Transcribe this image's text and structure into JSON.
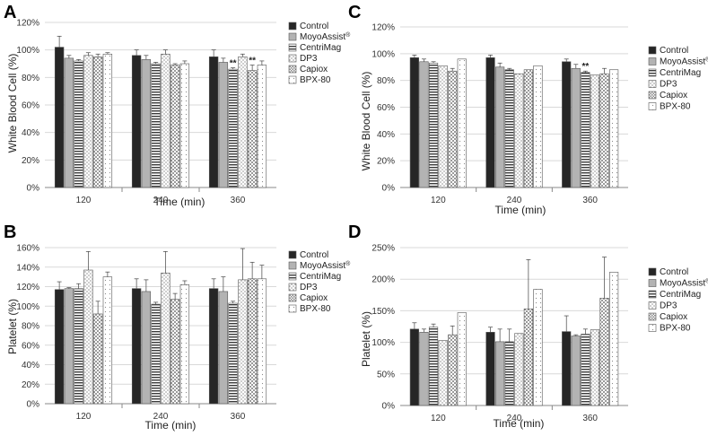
{
  "figure": {
    "legend_items": [
      {
        "label": "Control",
        "superscript": ""
      },
      {
        "label": "MoyoAssist",
        "superscript": "®"
      },
      {
        "label": "CentriMag",
        "superscript": ""
      },
      {
        "label": "DP3",
        "superscript": ""
      },
      {
        "label": "Capiox",
        "superscript": ""
      },
      {
        "label": "BPX-80",
        "superscript": ""
      }
    ]
  },
  "chart_data": [
    {
      "id": "A",
      "panel_label": "A",
      "type": "bar",
      "xlabel": "Time (min)",
      "ylabel": "White Blood Cell (%)",
      "categories": [
        "120",
        "240",
        "360"
      ],
      "ylim": [
        0,
        120
      ],
      "yticks": [
        0,
        20,
        40,
        60,
        80,
        100,
        120
      ],
      "tick_suffix": "%",
      "series": [
        {
          "name": "Control",
          "values": [
            102,
            96,
            95
          ],
          "errors": [
            8,
            4,
            5
          ]
        },
        {
          "name": "MoyoAssist",
          "values": [
            94,
            93,
            91
          ],
          "errors": [
            2,
            3,
            3
          ]
        },
        {
          "name": "CentriMag",
          "values": [
            92,
            90,
            86
          ],
          "errors": [
            1,
            1,
            1
          ]
        },
        {
          "name": "DP3",
          "values": [
            96,
            97,
            95
          ],
          "errors": [
            2,
            3,
            2
          ]
        },
        {
          "name": "Capiox",
          "values": [
            95,
            89,
            85
          ],
          "errors": [
            2,
            1,
            4
          ]
        },
        {
          "name": "BPX-80",
          "values": [
            97,
            90,
            89
          ],
          "errors": [
            1,
            2,
            3
          ]
        }
      ],
      "annotations": [
        {
          "category": "360",
          "series": "CentriMag",
          "text": "**"
        },
        {
          "category": "360",
          "series": "Capiox",
          "text": "**"
        }
      ],
      "legend": "right"
    },
    {
      "id": "B",
      "panel_label": "B",
      "type": "bar",
      "xlabel": "Time (min)",
      "ylabel": "Platelet (%)",
      "categories": [
        "120",
        "240",
        "360"
      ],
      "ylim": [
        0,
        160
      ],
      "yticks": [
        0,
        20,
        40,
        60,
        80,
        100,
        120,
        140,
        160
      ],
      "tick_suffix": "%",
      "series": [
        {
          "name": "Control",
          "values": [
            117,
            118,
            118
          ],
          "errors": [
            8,
            10,
            10
          ]
        },
        {
          "name": "MoyoAssist",
          "values": [
            118,
            115,
            115
          ],
          "errors": [
            1,
            12,
            15
          ]
        },
        {
          "name": "CentriMag",
          "values": [
            118,
            102,
            103
          ],
          "errors": [
            5,
            2,
            2
          ]
        },
        {
          "name": "DP3",
          "values": [
            137,
            134,
            127
          ],
          "errors": [
            19,
            22,
            32
          ]
        },
        {
          "name": "Capiox",
          "values": [
            92,
            107,
            128
          ],
          "errors": [
            13,
            6,
            17
          ]
        },
        {
          "name": "BPX-80",
          "values": [
            130,
            122,
            128
          ],
          "errors": [
            5,
            4,
            14
          ]
        }
      ],
      "annotations": [],
      "legend": "right"
    },
    {
      "id": "C",
      "panel_label": "C",
      "type": "bar",
      "xlabel": "Time (min)",
      "ylabel": "White Blood Cell (%)",
      "categories": [
        "120",
        "240",
        "360"
      ],
      "ylim": [
        0,
        120
      ],
      "yticks": [
        0,
        20,
        40,
        60,
        80,
        100,
        120
      ],
      "tick_suffix": "%",
      "series": [
        {
          "name": "Control",
          "values": [
            97,
            97,
            94
          ],
          "errors": [
            2,
            2,
            2
          ]
        },
        {
          "name": "MoyoAssist",
          "values": [
            94,
            90,
            89
          ],
          "errors": [
            2,
            3,
            3
          ]
        },
        {
          "name": "CentriMag",
          "values": [
            93,
            88,
            86
          ],
          "errors": [
            1,
            1,
            1
          ]
        },
        {
          "name": "DP3",
          "values": [
            91,
            85,
            84
          ],
          "errors": [
            0,
            0,
            0
          ]
        },
        {
          "name": "Capiox",
          "values": [
            87,
            88,
            85
          ],
          "errors": [
            2,
            0,
            4
          ]
        },
        {
          "name": "BPX-80",
          "values": [
            96,
            91,
            88
          ],
          "errors": [
            0,
            0,
            0
          ]
        }
      ],
      "annotations": [
        {
          "category": "360",
          "series": "CentriMag",
          "text": "**"
        }
      ],
      "legend": "right"
    },
    {
      "id": "D",
      "panel_label": "D",
      "type": "bar",
      "xlabel": "Time (min)",
      "ylabel": "Platelet (%)",
      "categories": [
        "120",
        "240",
        "360"
      ],
      "ylim": [
        0,
        250
      ],
      "yticks": [
        0,
        50,
        100,
        150,
        200,
        250
      ],
      "tick_suffix": "%",
      "series": [
        {
          "name": "Control",
          "values": [
            121,
            116,
            117
          ],
          "errors": [
            10,
            8,
            25
          ]
        },
        {
          "name": "MoyoAssist",
          "values": [
            116,
            101,
            110
          ],
          "errors": [
            5,
            20,
            2
          ]
        },
        {
          "name": "CentriMag",
          "values": [
            124,
            101,
            113
          ],
          "errors": [
            5,
            20,
            8
          ]
        },
        {
          "name": "DP3",
          "values": [
            103,
            114,
            120
          ],
          "errors": [
            0,
            0,
            0
          ]
        },
        {
          "name": "Capiox",
          "values": [
            112,
            153,
            170
          ],
          "errors": [
            14,
            78,
            65
          ]
        },
        {
          "name": "BPX-80",
          "values": [
            147,
            184,
            211
          ],
          "errors": [
            0,
            0,
            0
          ]
        }
      ],
      "annotations": [],
      "legend": "right"
    }
  ]
}
